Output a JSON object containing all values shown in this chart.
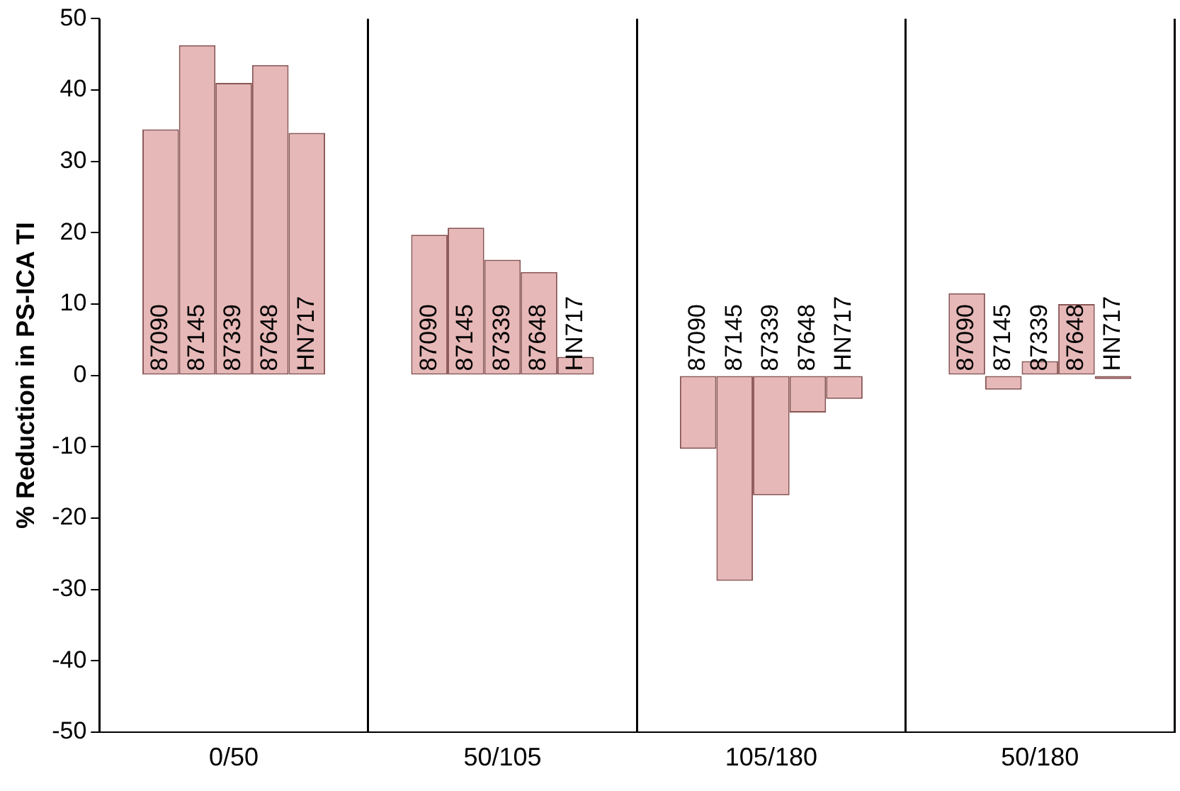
{
  "chart_data": {
    "type": "bar",
    "ylabel": "% Reduction in PS-ICA TI",
    "categories": [
      "0/50",
      "50/105",
      "105/180",
      "50/180"
    ],
    "series": [
      {
        "name": "87090",
        "color": "#e6b8b7",
        "values": [
          34.5,
          19.7,
          -10.3,
          11.5
        ]
      },
      {
        "name": "87145",
        "color": "#e6b8b7",
        "values": [
          46.3,
          20.7,
          -28.8,
          -2
        ]
      },
      {
        "name": "87339",
        "color": "#e6b8b7",
        "values": [
          41,
          16.2,
          -16.8,
          2
        ]
      },
      {
        "name": "87648",
        "color": "#e6b8b7",
        "values": [
          43.5,
          14.5,
          -5.2,
          10
        ]
      },
      {
        "name": "HN717",
        "color": "#e6b8b7",
        "values": [
          34,
          2.6,
          -3.3,
          -0.5
        ]
      }
    ],
    "ylim": [
      -50,
      50
    ],
    "yticks": [
      -50,
      -40,
      -30,
      -20,
      -10,
      0,
      10,
      20,
      30,
      40,
      50
    ],
    "grid": "x",
    "legend": false
  }
}
